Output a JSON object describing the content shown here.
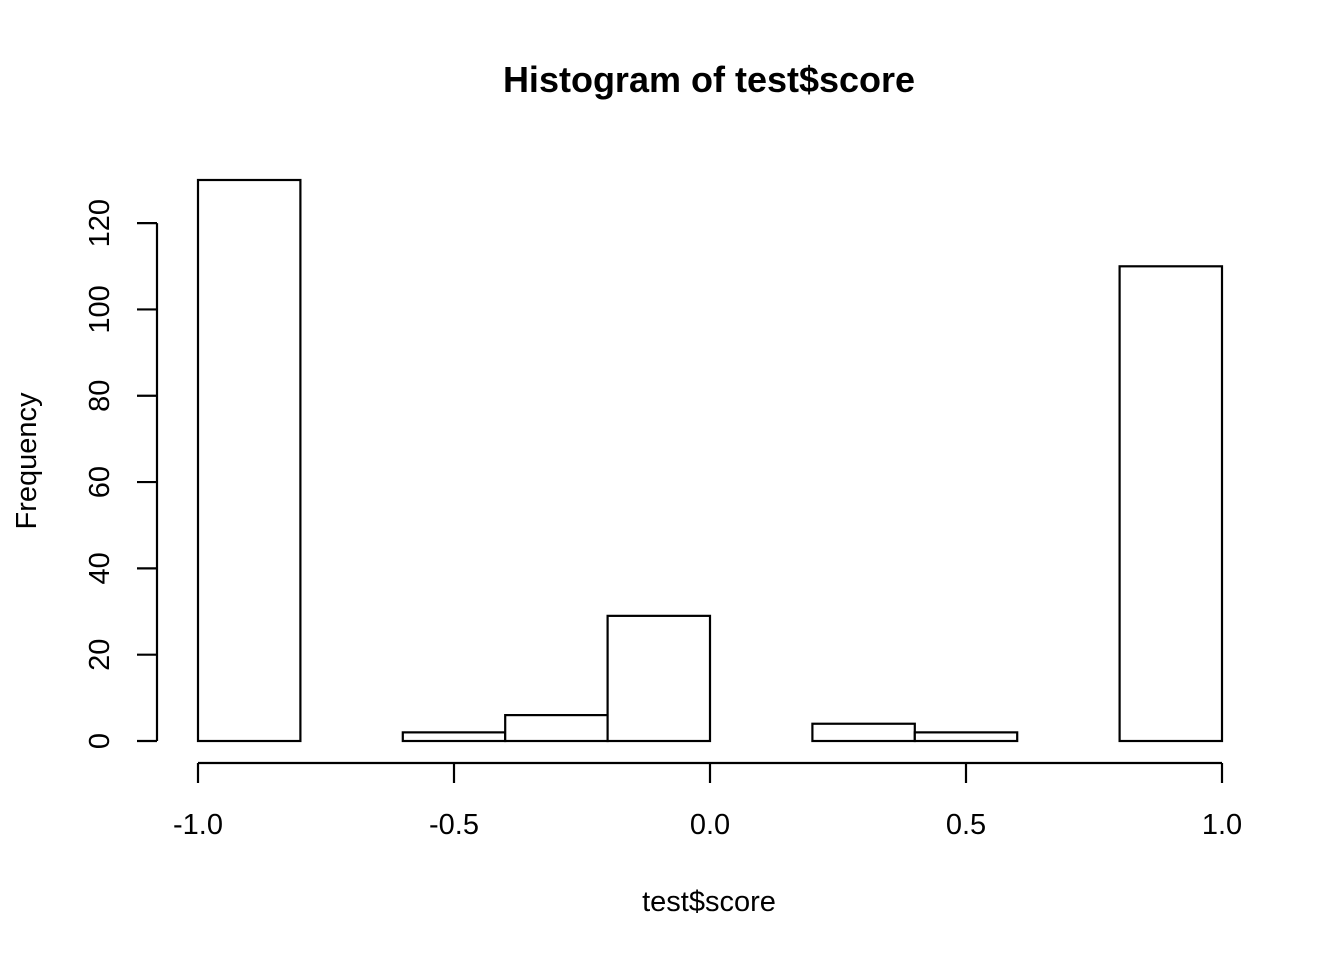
{
  "chart_data": {
    "type": "bar",
    "subtype": "histogram",
    "title": "Histogram of test$score",
    "xlabel": "test$score",
    "ylabel": "Frequency",
    "bins": [
      {
        "start": -1.0,
        "end": -0.8,
        "count": 130
      },
      {
        "start": -0.8,
        "end": -0.6,
        "count": 0
      },
      {
        "start": -0.6,
        "end": -0.4,
        "count": 2
      },
      {
        "start": -0.4,
        "end": -0.2,
        "count": 6
      },
      {
        "start": -0.2,
        "end": 0.0,
        "count": 29
      },
      {
        "start": 0.0,
        "end": 0.2,
        "count": 0
      },
      {
        "start": 0.2,
        "end": 0.4,
        "count": 4
      },
      {
        "start": 0.4,
        "end": 0.6,
        "count": 2
      },
      {
        "start": 0.6,
        "end": 0.8,
        "count": 0
      },
      {
        "start": 0.8,
        "end": 1.0,
        "count": 110
      }
    ],
    "xlim": [
      -1.0,
      1.0
    ],
    "ylim": [
      0,
      130
    ],
    "x_ticks": [
      {
        "value": -1.0,
        "label": "-1.0"
      },
      {
        "value": -0.5,
        "label": "-0.5"
      },
      {
        "value": 0.0,
        "label": "0.0"
      },
      {
        "value": 0.5,
        "label": "0.5"
      },
      {
        "value": 1.0,
        "label": "1.0"
      }
    ],
    "y_ticks": [
      {
        "value": 0,
        "label": "0"
      },
      {
        "value": 20,
        "label": "20"
      },
      {
        "value": 40,
        "label": "40"
      },
      {
        "value": 60,
        "label": "60"
      },
      {
        "value": 80,
        "label": "80"
      },
      {
        "value": 100,
        "label": "100"
      },
      {
        "value": 120,
        "label": "120"
      }
    ],
    "grid": false,
    "legend": "none",
    "colors": {
      "bar_fill": "#ffffff",
      "bar_stroke": "#000000",
      "text": "#000000"
    }
  }
}
